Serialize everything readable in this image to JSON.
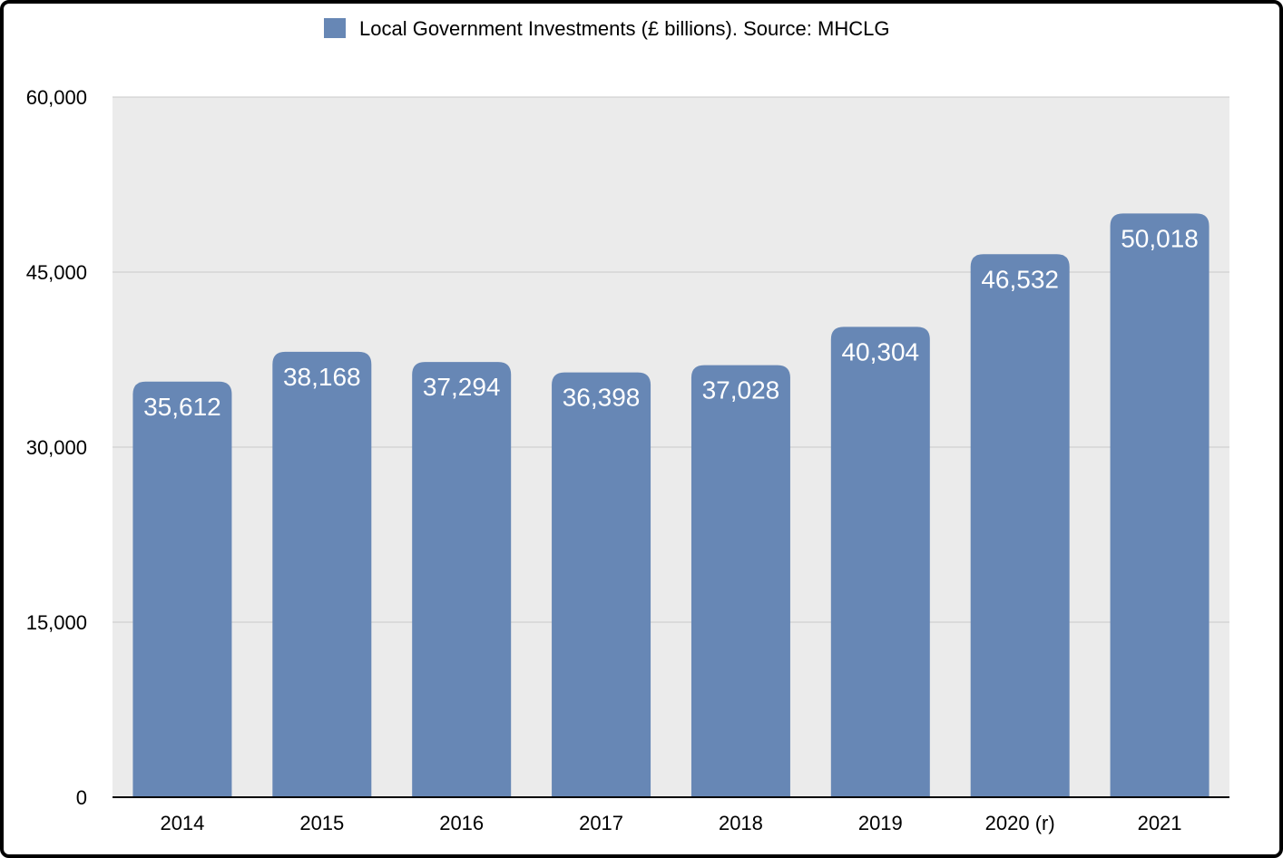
{
  "chart_data": {
    "type": "bar",
    "categories": [
      "2014",
      "2015",
      "2016",
      "2017",
      "2018",
      "2019",
      "2020 (r)",
      "2021"
    ],
    "series": [
      {
        "name": "Local Government Investments (£ billions). Source: MHCLG",
        "values": [
          35612,
          38168,
          37294,
          36398,
          37028,
          40304,
          46532,
          50018
        ],
        "value_labels": [
          "35,612",
          "38,168",
          "37,294",
          "36,398",
          "37,028",
          "40,304",
          "46,532",
          "50,018"
        ]
      }
    ],
    "ylim": [
      0,
      60000
    ],
    "yticks": [
      0,
      15000,
      30000,
      45000,
      60000
    ],
    "ytick_labels": [
      "0",
      "15,000",
      "30,000",
      "45,000",
      "60,000"
    ],
    "title": "",
    "xlabel": "",
    "ylabel": "",
    "grid": true,
    "legend_position": "top-center",
    "colors": {
      "bar": "#6787b5",
      "plot_background": "#ebebeb",
      "gridline": "#c8c8c8",
      "axis": "#000000"
    }
  }
}
